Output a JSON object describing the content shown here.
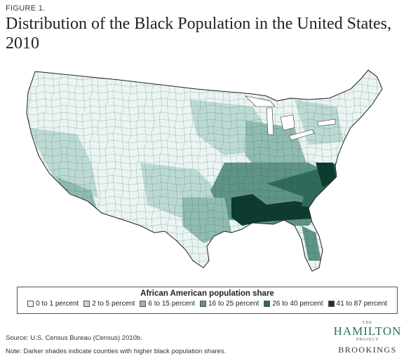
{
  "figure_label": "FIGURE 1.",
  "title": "Distribution of the Black Population in the United States, 2010",
  "legend": {
    "title": "African American population share",
    "items": [
      {
        "label": "0 to 1 percent",
        "color": "#eaf5f3"
      },
      {
        "label": "2 to 5 percent",
        "color": "#bcdad4"
      },
      {
        "label": "6 to 15 percent",
        "color": "#8fbcb1"
      },
      {
        "label": "16 to 25 percent",
        "color": "#5f9488"
      },
      {
        "label": "26 to 40 percent",
        "color": "#2e6b5a"
      },
      {
        "label": "41 to 87 percent",
        "color": "#0c3a2e"
      }
    ]
  },
  "source": "Source: U.S. Census Bureau (Census) 2010b.",
  "note": "Note: Darker shades indicate counties with higher black population shares.",
  "logo": {
    "the": "THE",
    "hamilton": "HAMILTON",
    "project": "PROJECT",
    "brookings": "BROOKINGS"
  }
}
